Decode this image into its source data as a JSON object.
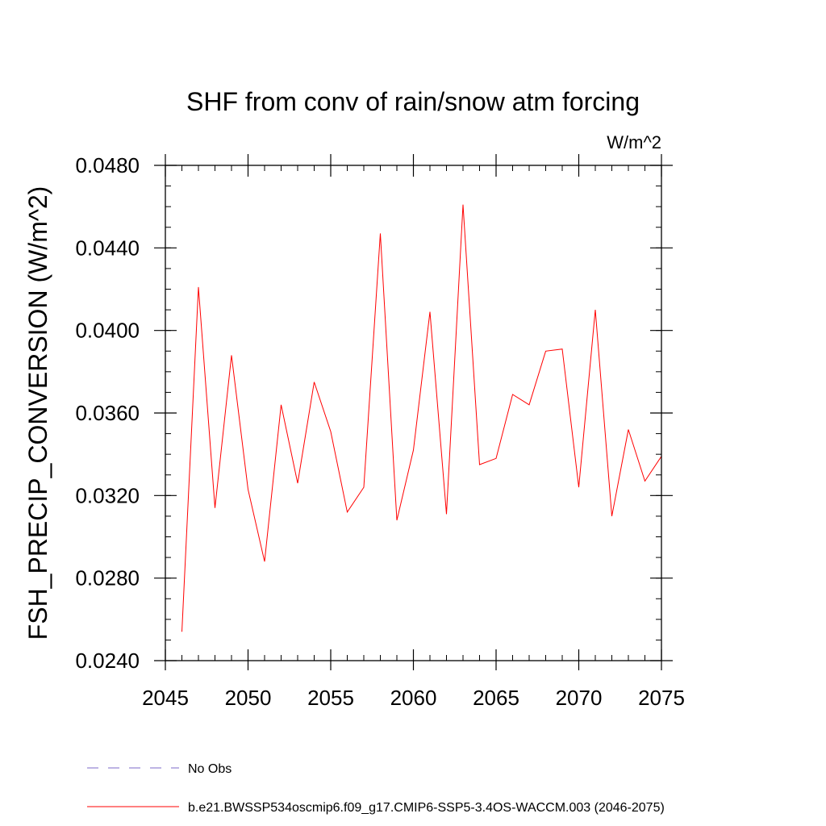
{
  "chart_data": {
    "type": "line",
    "title": "SHF from conv of rain/snow atm forcing",
    "units_label": "W/m^2",
    "ylabel": "FSH_PRECIP_CONVERSION  (W/m^2)",
    "xlabel": "",
    "xlim": [
      2045,
      2075
    ],
    "ylim": [
      0.024,
      0.048
    ],
    "x_ticks": [
      2045,
      2050,
      2055,
      2060,
      2065,
      2070,
      2075
    ],
    "x_tick_labels": [
      "2045",
      "2050",
      "2055",
      "2060",
      "2065",
      "2070",
      "2075"
    ],
    "y_ticks": [
      0.024,
      0.028,
      0.032,
      0.036,
      0.04,
      0.044,
      0.048
    ],
    "y_tick_labels": [
      "0.0240",
      "0.0280",
      "0.0320",
      "0.0360",
      "0.0400",
      "0.0440",
      "0.0480"
    ],
    "x_minor_step": 1,
    "y_minor_step": 0.001,
    "grid": false,
    "legend_position": "bottom",
    "series": [
      {
        "name": "No Obs",
        "color": "#7b68c8",
        "dash": "dashed",
        "x": [],
        "y": []
      },
      {
        "name": "b.e21.BWSSP534oscmip6.f09_g17.CMIP6-SSP5-3.4OS-WACCM.003 (2046-2075)",
        "color": "#ff0000",
        "dash": "solid",
        "x": [
          2046,
          2047,
          2048,
          2049,
          2050,
          2051,
          2052,
          2053,
          2054,
          2055,
          2056,
          2057,
          2058,
          2059,
          2060,
          2061,
          2062,
          2063,
          2064,
          2065,
          2066,
          2067,
          2068,
          2069,
          2070,
          2071,
          2072,
          2073,
          2074,
          2075
        ],
        "y": [
          0.0254,
          0.0421,
          0.0314,
          0.0388,
          0.0323,
          0.0288,
          0.0364,
          0.0326,
          0.0375,
          0.0351,
          0.0312,
          0.0324,
          0.0447,
          0.0308,
          0.0342,
          0.0409,
          0.0311,
          0.0461,
          0.0335,
          0.0338,
          0.0369,
          0.0364,
          0.039,
          0.0391,
          0.0324,
          0.041,
          0.031,
          0.0352,
          0.0327,
          0.0339
        ]
      }
    ]
  }
}
